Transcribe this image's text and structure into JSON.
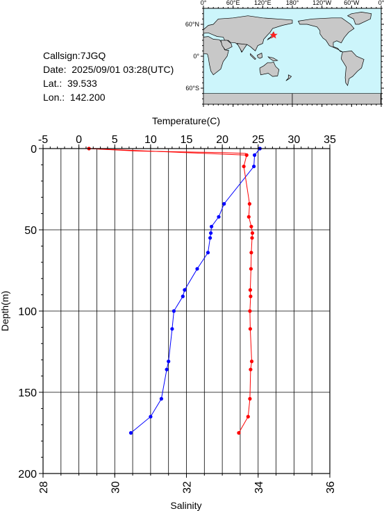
{
  "info": {
    "callsign": "Callsign:7JGQ",
    "date": "Date:  2025/09/01 03:28(UTC)",
    "lat": "Lat.:  39.533",
    "lon": "Lon.:  142.200"
  },
  "map": {
    "lon_labels": [
      "0°",
      "60°E",
      "120°E",
      "180°",
      "120°W",
      "60°W",
      "0°"
    ],
    "lat_labels": [
      "60°N",
      "0°",
      "60°S"
    ],
    "colors": {
      "ocean": "#ccf5fb",
      "land": "#c8c8c8",
      "marker": "#ff2020"
    },
    "marker": {
      "lat": 39.533,
      "lon": 142.2
    }
  },
  "chart_data": {
    "type": "line",
    "title": "",
    "top_axis": {
      "label": "Temperature(C)",
      "range": [
        -5,
        35
      ],
      "ticks": [
        "-5",
        "0",
        "5",
        "10",
        "15",
        "20",
        "25",
        "30",
        "35"
      ]
    },
    "bottom_axis": {
      "label": "Salinity",
      "range": [
        28,
        36
      ],
      "ticks": [
        "28",
        "30",
        "32",
        "34",
        "36"
      ]
    },
    "y_axis": {
      "label": "Depth(m)",
      "range": [
        0,
        200
      ],
      "inverted": true,
      "ticks": [
        "0",
        "50",
        "100",
        "150",
        "200"
      ]
    },
    "grid": true,
    "series": [
      {
        "color": "#ff0000",
        "axis": "temperature",
        "line_only": true,
        "points": [
          [
            1.4,
            0
          ],
          [
            8,
            1.5
          ],
          [
            20,
            2.5
          ],
          [
            23.3,
            3
          ]
        ]
      },
      {
        "color": "#0000ff",
        "axis": "salinity",
        "points": [
          [
            34.05,
            0
          ],
          [
            33.9,
            4
          ],
          [
            33.88,
            11
          ],
          [
            33.05,
            34
          ],
          [
            32.9,
            42
          ],
          [
            32.7,
            48
          ],
          [
            32.68,
            52
          ],
          [
            32.66,
            55
          ],
          [
            32.6,
            64
          ],
          [
            32.3,
            74
          ],
          [
            31.95,
            87
          ],
          [
            31.9,
            91
          ],
          [
            31.65,
            100
          ],
          [
            31.6,
            111
          ],
          [
            31.5,
            131
          ],
          [
            31.45,
            136
          ],
          [
            31.3,
            154
          ],
          [
            31.0,
            165
          ],
          [
            30.45,
            175
          ]
        ]
      },
      {
        "color": "#ff0000",
        "axis": "temperature",
        "points": [
          [
            1.4,
            0
          ],
          [
            23.4,
            4
          ],
          [
            23.0,
            11
          ],
          [
            23.8,
            34
          ],
          [
            23.7,
            42
          ],
          [
            24.05,
            48
          ],
          [
            24.2,
            52
          ],
          [
            24.15,
            55
          ],
          [
            24.05,
            64
          ],
          [
            24.0,
            74
          ],
          [
            23.9,
            87
          ],
          [
            23.95,
            91
          ],
          [
            23.85,
            100
          ],
          [
            23.9,
            111
          ],
          [
            24.1,
            131
          ],
          [
            23.95,
            136
          ],
          [
            23.85,
            154
          ],
          [
            23.6,
            165
          ],
          [
            22.3,
            175
          ]
        ]
      }
    ]
  }
}
